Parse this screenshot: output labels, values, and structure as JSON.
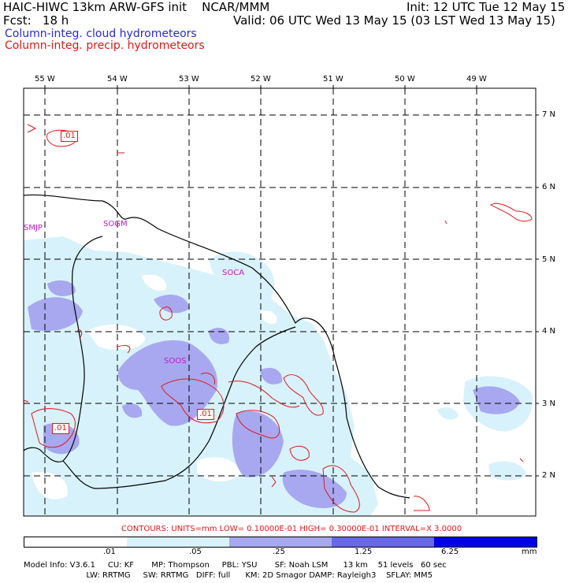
{
  "header": {
    "title": "HAIC-HIWC 13km ARW-GFS init    NCAR/MMM",
    "init": "Init: 12 UTC Tue 12 May 15",
    "fcst": "Fcst:   18 h",
    "valid": "Valid: 06 UTC Wed 13 May 15 (03 LST Wed 13 May 15)"
  },
  "legend": {
    "cloud": "Column-integ. cloud hydrometeors",
    "precip": "Column-integ. precip. hydrometeors",
    "cloud_color": "#2a2ad8",
    "precip_color": "#e01818"
  },
  "map": {
    "lon_labels": [
      "55 W",
      "54 W",
      "53 W",
      "52 W",
      "51 W",
      "50 W",
      "49 W"
    ],
    "lat_labels": [
      "7 N",
      "6 N",
      "5 N",
      "4 N",
      "3 N",
      "2 N"
    ],
    "stations": [
      "SMJP",
      "SOGM",
      "SOCA",
      "SOOS"
    ],
    "contour_labels": [
      ".01",
      ".01",
      ".01"
    ],
    "colors": {
      "cloud_light": "#d8f2fb",
      "cloud_mid": "#a8a8f0",
      "precip_line": "#e01818",
      "coast_line": "#000000"
    }
  },
  "contours_info": "CONTOURS:  UNITS=mm  LOW= 0.10000E-01  HIGH= 0.30000E-01  INTERVAL=X  3.0000",
  "colorbar": {
    "ticks": [
      ".01",
      ".05",
      ".25",
      "1.25",
      "6.25"
    ],
    "unit": "mm",
    "colors": [
      "#ffffff",
      "#d8f2fb",
      "#a8a8f0",
      "#6868e8",
      "#0000e8"
    ]
  },
  "footer": {
    "line1": "Model Info: V3.6.1     CU: KF       MP: Thompson     PBL: YSU       SF: Noah LSM      13 km    51 levels   60 sec",
    "line2": "                         LW: RRTMG     SW: RRTMG   DIFF: full      KM: 2D Smagor DAMP: Rayleigh3    SFLAY: MM5"
  }
}
